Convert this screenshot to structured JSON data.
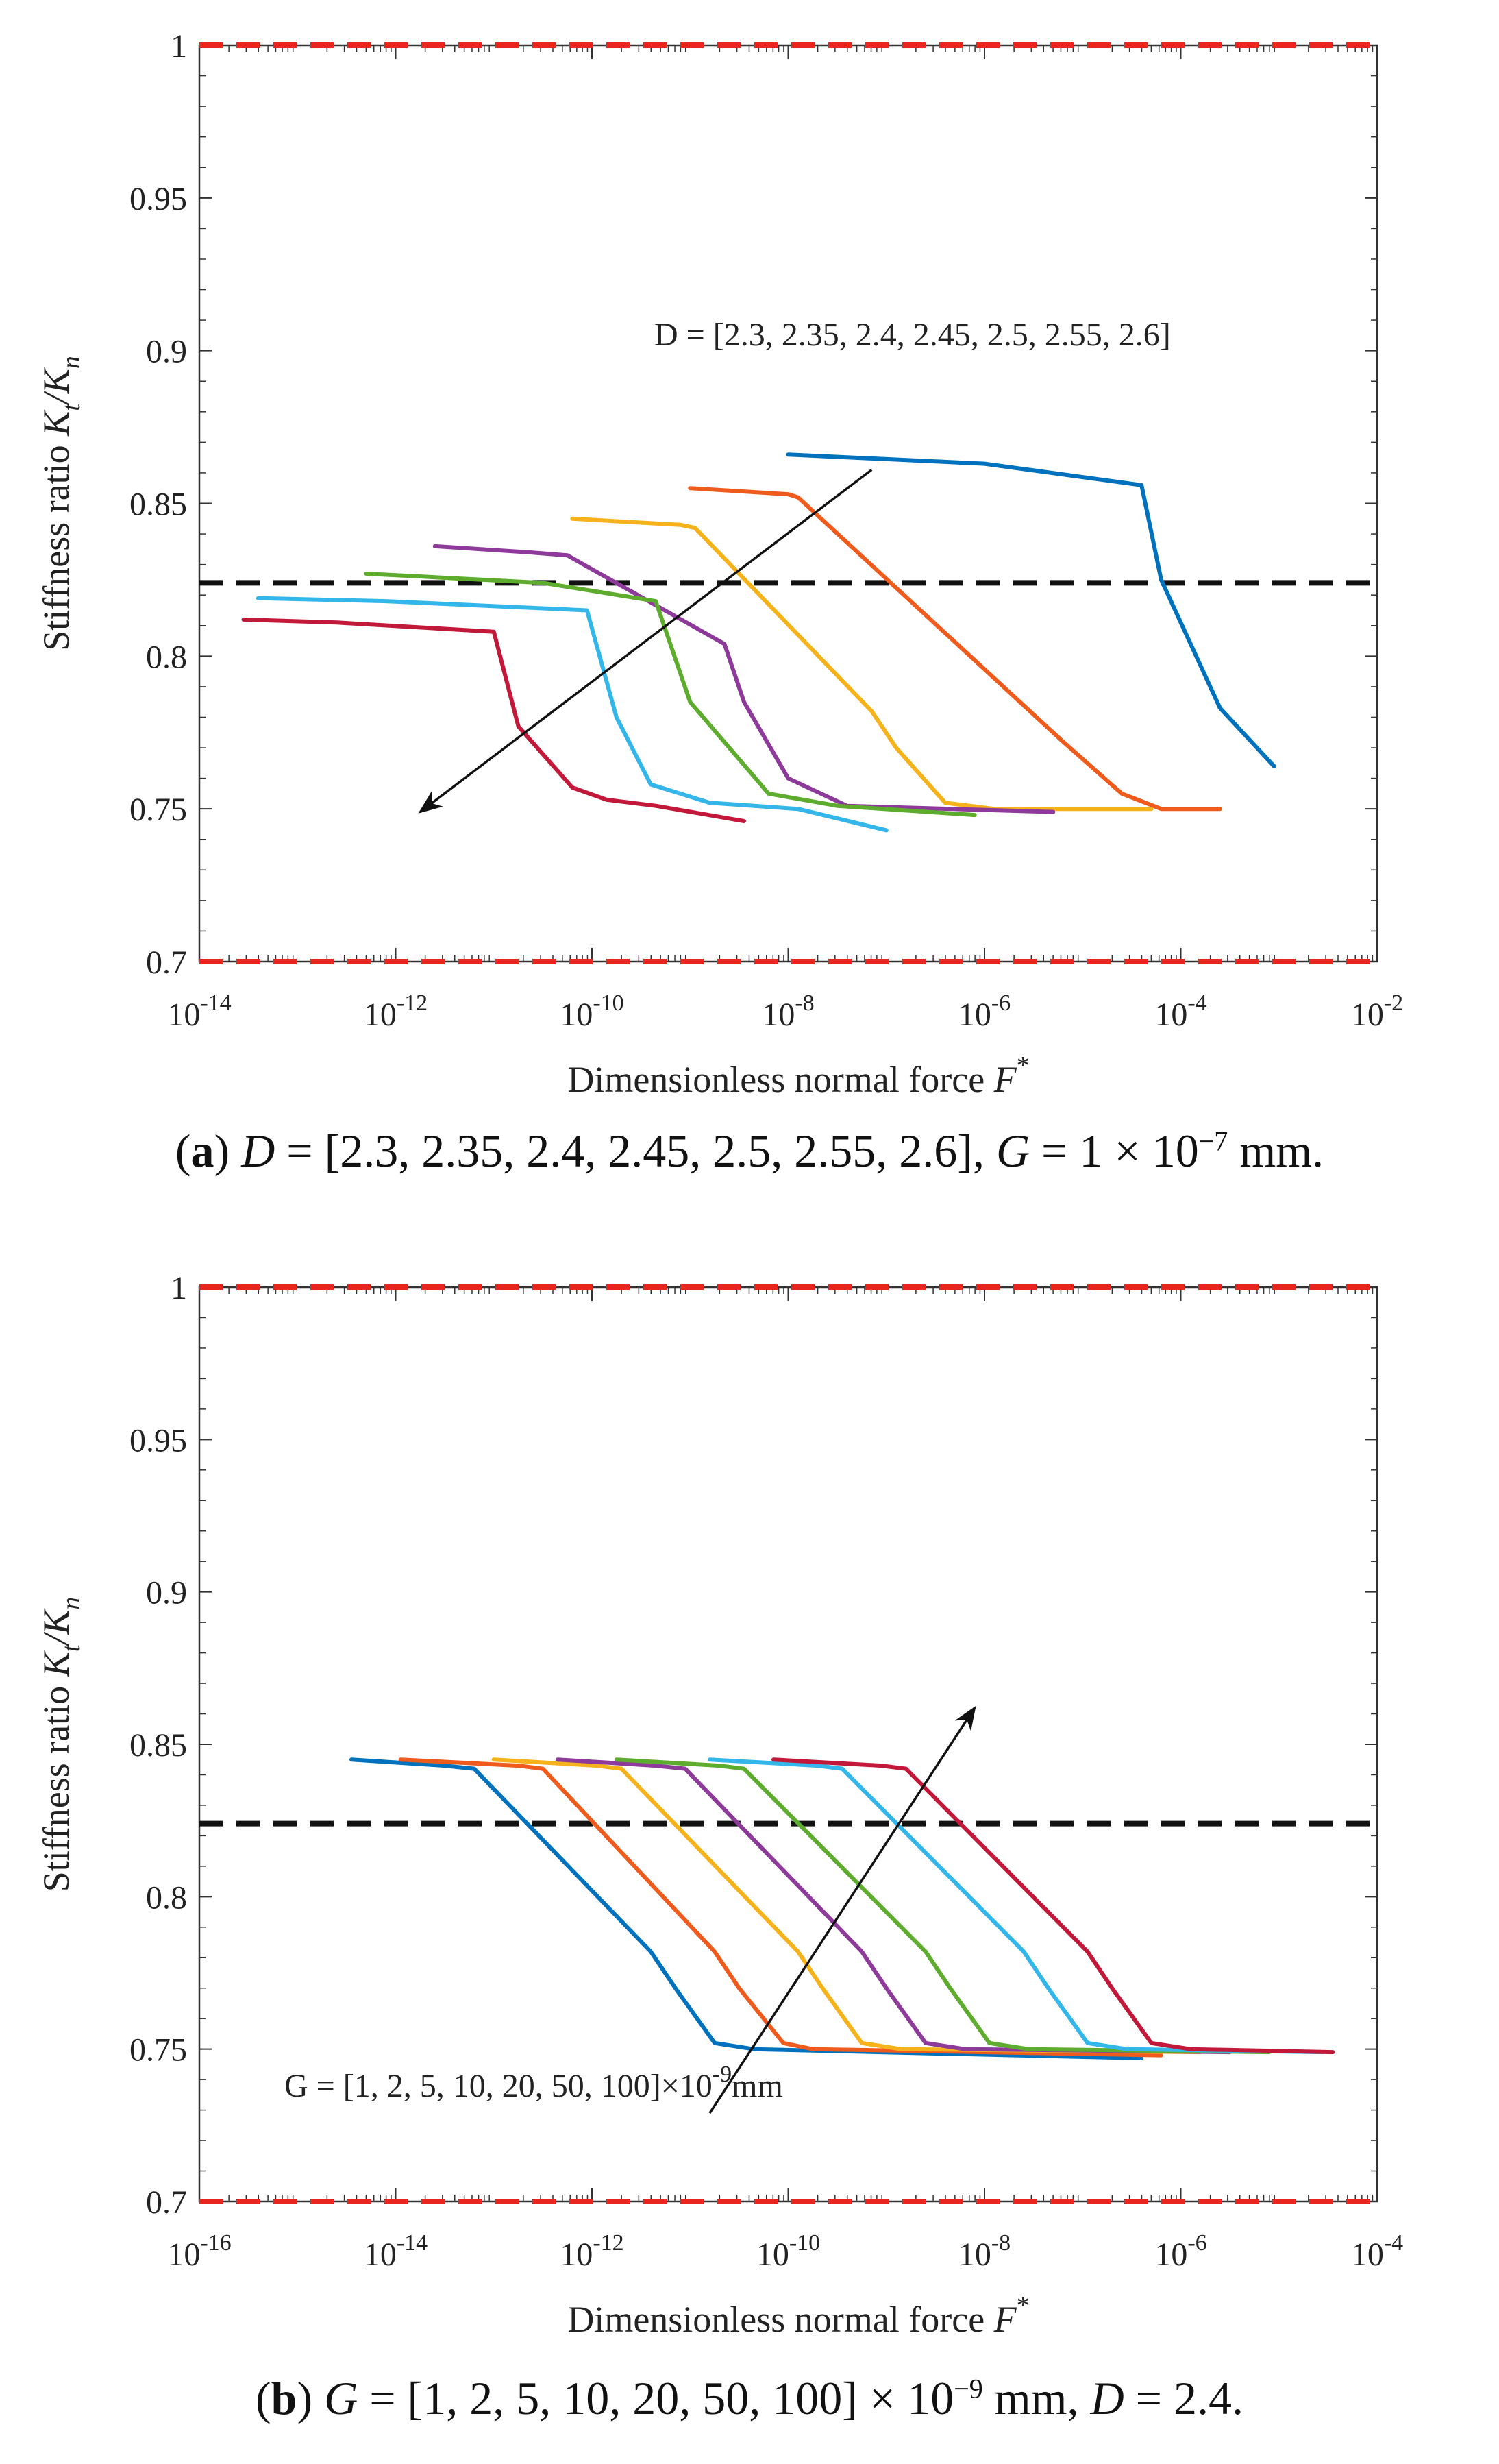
{
  "chart_data": [
    {
      "id": "a",
      "type": "line",
      "xscale": "log",
      "xlim_exp": [
        -14,
        -2
      ],
      "x_tick_exponents": [
        "-14",
        "-12",
        "-10",
        "-8",
        "-6",
        "-4",
        "-2"
      ],
      "ylim": [
        0.7,
        1.0
      ],
      "y_ticks": [
        "0.7",
        "0.75",
        "0.8",
        "0.85",
        "0.9",
        "0.95",
        "1"
      ],
      "y_tick_values": [
        0.7,
        0.75,
        0.8,
        0.85,
        0.9,
        0.95,
        1.0
      ],
      "xlabel_main": "Dimensionless normal force",
      "xlabel_symbol": "F",
      "xlabel_sup": "*",
      "ylabel_main": "Stiffness ratio",
      "ylabel_symbol": "K",
      "ylabel_sub1": "t",
      "ylabel_slash": "/K",
      "ylabel_sub2": "n",
      "reference_line": 0.824,
      "boundary_color": "#e8251e",
      "annotation": "D = [2.3, 2.35, 2.4, 2.45, 2.5, 2.55, 2.6]",
      "arrow": {
        "from": [
          -7.15,
          0.861
        ],
        "to": [
          -11.75,
          0.749
        ]
      },
      "caption": {
        "label": "a",
        "text_parts": [
          "D",
          " = [2.3, 2.35, 2.4, 2.45, 2.5, 2.55, 2.6], ",
          "G",
          " = 1 × 10",
          "−7",
          " mm."
        ]
      },
      "series": [
        {
          "name": "D = 2.3",
          "color": "#0072bd",
          "x": [
            -8,
            -6,
            -4.4,
            -4.2,
            -3.6,
            -3.05
          ],
          "y": [
            0.866,
            0.863,
            0.856,
            0.825,
            0.783,
            0.764
          ]
        },
        {
          "name": "D = 2.35",
          "color": "#ef5b1c",
          "x": [
            -9,
            -8,
            -7.9,
            -5.2,
            -4.6,
            -4.2,
            -3.6
          ],
          "y": [
            0.855,
            0.853,
            0.852,
            0.772,
            0.755,
            0.75,
            0.75
          ]
        },
        {
          "name": "D = 2.4",
          "color": "#f5b21b",
          "x": [
            -10.2,
            -9.1,
            -8.95,
            -7.15,
            -6.9,
            -6.4,
            -5.9,
            -4.3
          ],
          "y": [
            0.845,
            0.843,
            0.842,
            0.782,
            0.77,
            0.752,
            0.75,
            0.75
          ]
        },
        {
          "name": "D = 2.45",
          "color": "#8e3a9a",
          "x": [
            -11.6,
            -10.65,
            -10.25,
            -8.65,
            -8.45,
            -8.0,
            -7.4,
            -5.3
          ],
          "y": [
            0.836,
            0.834,
            0.833,
            0.804,
            0.785,
            0.76,
            0.751,
            0.749
          ]
        },
        {
          "name": "D = 2.5",
          "color": "#5eac2e",
          "x": [
            -12.3,
            -10.5,
            -9.35,
            -9.0,
            -8.2,
            -7.5,
            -6.1
          ],
          "y": [
            0.827,
            0.824,
            0.818,
            0.785,
            0.755,
            0.751,
            0.748
          ]
        },
        {
          "name": "D = 2.55",
          "color": "#33b7ea",
          "x": [
            -13.4,
            -12.1,
            -10.05,
            -9.75,
            -9.4,
            -8.8,
            -7.9,
            -7.0
          ],
          "y": [
            0.819,
            0.818,
            0.815,
            0.78,
            0.758,
            0.752,
            0.75,
            0.743
          ]
        },
        {
          "name": "D = 2.6",
          "color": "#c2193a",
          "x": [
            -13.55,
            -12.6,
            -11.0,
            -10.75,
            -10.2,
            -9.85,
            -9.35,
            -8.45
          ],
          "y": [
            0.812,
            0.811,
            0.808,
            0.777,
            0.757,
            0.753,
            0.751,
            0.746
          ]
        }
      ]
    },
    {
      "id": "b",
      "type": "line",
      "xscale": "log",
      "xlim_exp": [
        -16,
        -4
      ],
      "x_tick_exponents": [
        "-16",
        "-14",
        "-12",
        "-10",
        "-8",
        "-6",
        "-4"
      ],
      "ylim": [
        0.7,
        1.0
      ],
      "y_ticks": [
        "0.7",
        "0.75",
        "0.8",
        "0.85",
        "0.9",
        "0.95",
        "1"
      ],
      "y_tick_values": [
        0.7,
        0.75,
        0.8,
        0.85,
        0.9,
        0.95,
        1.0
      ],
      "xlabel_main": "Dimensionless normal force",
      "xlabel_symbol": "F",
      "xlabel_sup": "*",
      "ylabel_main": "Stiffness ratio",
      "ylabel_symbol": "K",
      "ylabel_sub1": "t",
      "ylabel_slash": "/K",
      "ylabel_sub2": "n",
      "reference_line": 0.824,
      "boundary_color": "#e8251e",
      "annotation_main": "G = [1, 2, 5, 10, 20, 50, 100]×10",
      "annotation_sup": "-9",
      "annotation_unit": "mm",
      "arrow": {
        "from": [
          -10.8,
          0.729
        ],
        "to": [
          -8.1,
          0.862
        ]
      },
      "caption": {
        "label": "b",
        "text_parts": [
          "G",
          " = [1, 2, 5, 10, 20, 50, 100] × 10",
          "−9",
          " mm, ",
          "D",
          " = 2.4."
        ]
      },
      "series": [
        {
          "name": "G = 1×10^-9 mm",
          "color": "#0072bd",
          "x": [
            -14.45,
            -13.5,
            -13.2,
            -11.4,
            -11.15,
            -10.75,
            -10.35,
            -6.4
          ],
          "y": [
            0.845,
            0.843,
            0.842,
            0.782,
            0.77,
            0.752,
            0.75,
            0.747
          ]
        },
        {
          "name": "G = 2×10^-9 mm",
          "color": "#ef5b1c",
          "x": [
            -13.95,
            -12.75,
            -12.5,
            -10.75,
            -10.5,
            -10.05,
            -9.75,
            -6.2
          ],
          "y": [
            0.845,
            0.843,
            0.842,
            0.782,
            0.77,
            0.752,
            0.75,
            0.748
          ]
        },
        {
          "name": "G = 5×10^-9 mm",
          "color": "#f5b21b",
          "x": [
            -13.0,
            -11.95,
            -11.7,
            -9.9,
            -9.65,
            -9.25,
            -8.85,
            -5.8
          ],
          "y": [
            0.845,
            0.843,
            0.842,
            0.782,
            0.77,
            0.752,
            0.75,
            0.749
          ]
        },
        {
          "name": "G = 10×10^-9 mm",
          "color": "#8e3a9a",
          "x": [
            -12.35,
            -11.35,
            -11.05,
            -9.25,
            -9.0,
            -8.6,
            -8.2,
            -5.5
          ],
          "y": [
            0.845,
            0.843,
            0.842,
            0.782,
            0.77,
            0.752,
            0.75,
            0.749
          ]
        },
        {
          "name": "G = 20×10^-9 mm",
          "color": "#5eac2e",
          "x": [
            -11.75,
            -10.7,
            -10.45,
            -8.6,
            -8.35,
            -7.95,
            -7.55,
            -5.1
          ],
          "y": [
            0.845,
            0.843,
            0.842,
            0.782,
            0.77,
            0.752,
            0.75,
            0.749
          ]
        },
        {
          "name": "G = 50×10^-9 mm",
          "color": "#33b7ea",
          "x": [
            -10.8,
            -9.7,
            -9.45,
            -7.6,
            -7.35,
            -6.95,
            -6.55,
            -4.55
          ],
          "y": [
            0.845,
            0.843,
            0.842,
            0.782,
            0.77,
            0.752,
            0.75,
            0.749
          ]
        },
        {
          "name": "G = 100×10^-9 mm",
          "color": "#c2193a",
          "x": [
            -10.15,
            -9.05,
            -8.8,
            -6.95,
            -6.7,
            -6.3,
            -5.9,
            -4.45
          ],
          "y": [
            0.845,
            0.843,
            0.842,
            0.782,
            0.77,
            0.752,
            0.75,
            0.749
          ]
        }
      ]
    }
  ]
}
